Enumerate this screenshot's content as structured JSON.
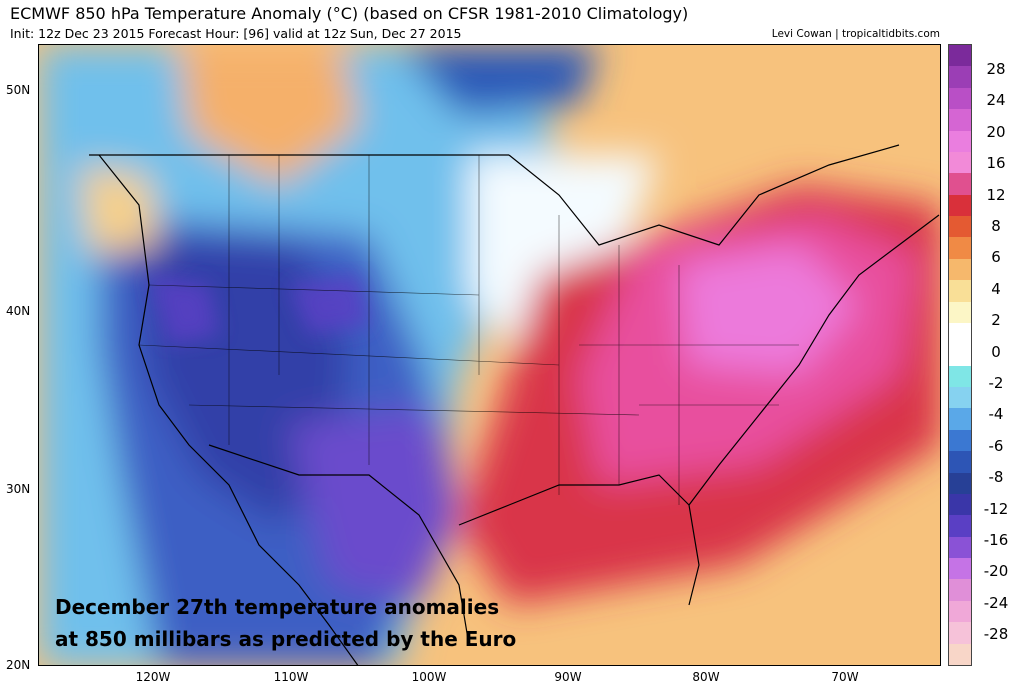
{
  "header": {
    "title": "ECMWF 850 hPa Temperature Anomaly (°C) (based on CFSR 1981-2010 Climatology)",
    "subtitle": "Init: 12z Dec 23 2015   Forecast Hour: [96]   valid at 12z Sun, Dec 27 2015",
    "credit": "Levi Cowan | tropicaltidbits.com"
  },
  "caption": {
    "line1": "December 27th temperature anomalies",
    "line2": "at 850 millibars as predicted by the Euro"
  },
  "axes": {
    "lat_labels": [
      "50N",
      "40N",
      "30N",
      "20N"
    ],
    "lon_labels": [
      "120W",
      "110W",
      "100W",
      "90W",
      "80W",
      "70W"
    ]
  },
  "colorbar": {
    "ticks": [
      "28",
      "24",
      "20",
      "16",
      "12",
      "8",
      "6",
      "4",
      "2",
      "0",
      "-2",
      "-4",
      "-6",
      "-8",
      "-12",
      "-16",
      "-20",
      "-24",
      "-28"
    ],
    "colors": [
      "#7b2a9b",
      "#9b3eb5",
      "#b94fc6",
      "#d565d3",
      "#ea7edf",
      "#f28ad8",
      "#e0508f",
      "#d9303a",
      "#e45a32",
      "#f08a45",
      "#f6b86c",
      "#f9df97",
      "#fcf6c6",
      "#ffffff",
      "#ffffff",
      "#7fe6e6",
      "#86d2f0",
      "#5aa8e8",
      "#3b78d2",
      "#2d55b5",
      "#274096",
      "#3a36a8",
      "#5a3fc4",
      "#8a52d6",
      "#c573e6",
      "#e08fd8",
      "#f0a8d8",
      "#f6c2d9",
      "#f8d6c8"
    ]
  }
}
